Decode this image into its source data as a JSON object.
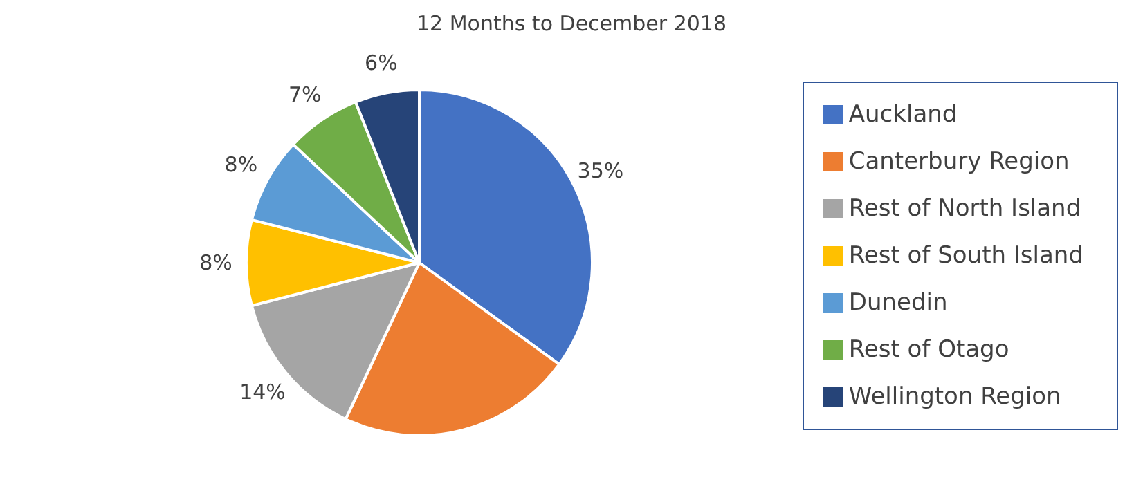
{
  "chart_data": {
    "type": "pie",
    "subtitle": "12 Months to December 2018",
    "categories": [
      "Auckland",
      "Canterbury Region",
      "Rest of North Island",
      "Rest of South Island",
      "Dunedin",
      "Rest of Otago",
      "Wellington Region"
    ],
    "values": [
      35,
      22,
      14,
      8,
      8,
      7,
      6
    ],
    "colors": [
      "#4472c4",
      "#ed7d31",
      "#a5a5a5",
      "#ffc000",
      "#5b9bd5",
      "#70ad47",
      "#264478"
    ],
    "value_labels": [
      "35%",
      null,
      "14%",
      "8%",
      "8%",
      "7%",
      "6%"
    ],
    "legend": "right"
  }
}
